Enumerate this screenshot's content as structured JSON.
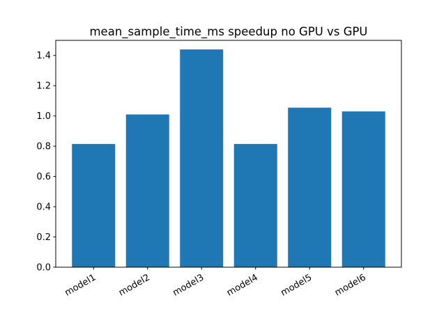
{
  "chart_data": {
    "type": "bar",
    "title": "mean_sample_time_ms speedup no GPU vs GPU",
    "xlabel": "",
    "ylabel": "",
    "categories": [
      "model1",
      "model2",
      "model3",
      "model4",
      "model5",
      "model6"
    ],
    "values": [
      0.815,
      1.01,
      1.44,
      0.815,
      1.055,
      1.03
    ],
    "ylim": [
      0,
      1.5
    ],
    "yticks": [
      0.0,
      0.2,
      0.4,
      0.6,
      0.8,
      1.0,
      1.2,
      1.4
    ],
    "ytick_labels": [
      "0.0",
      "0.2",
      "0.4",
      "0.6",
      "0.8",
      "1.0",
      "1.2",
      "1.4"
    ],
    "bar_color": "#1f77b4",
    "grid": false,
    "x_tick_rotation": "30deg"
  }
}
